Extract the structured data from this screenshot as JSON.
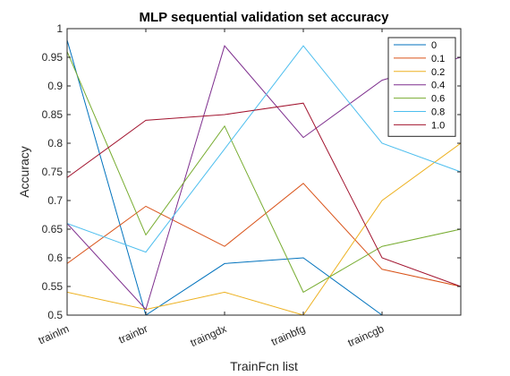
{
  "chart_data": {
    "type": "line",
    "title": "MLP sequential validation set accuracy",
    "xlabel": "TrainFcn list",
    "ylabel": "Accuracy",
    "categories": [
      "trainlm",
      "trainbr",
      "traingdx",
      "trainbfg",
      "traincgb",
      ""
    ],
    "ylim": [
      0.5,
      1
    ],
    "yticks": [
      "0.5",
      "0.55",
      "0.6",
      "0.65",
      "0.7",
      "0.75",
      "0.8",
      "0.85",
      "0.9",
      "0.95",
      "1"
    ],
    "grid": false,
    "legend_position": "top-right",
    "series": [
      {
        "name": "0",
        "color": "#0072bd",
        "values": [
          0.98,
          0.5,
          0.59,
          0.6,
          0.5,
          0.48
        ]
      },
      {
        "name": "0.1",
        "color": "#d95319",
        "values": [
          0.59,
          0.69,
          0.62,
          0.73,
          0.58,
          0.55
        ]
      },
      {
        "name": "0.2",
        "color": "#edb120",
        "values": [
          0.54,
          0.51,
          0.54,
          0.5,
          0.7,
          0.8
        ]
      },
      {
        "name": "0.4",
        "color": "#7e2f8e",
        "values": [
          0.66,
          0.51,
          0.97,
          0.81,
          0.91,
          0.95
        ]
      },
      {
        "name": "0.6",
        "color": "#77ac30",
        "values": [
          0.96,
          0.64,
          0.83,
          0.54,
          0.62,
          0.65
        ]
      },
      {
        "name": "0.8",
        "color": "#4dbeee",
        "values": [
          0.66,
          0.61,
          0.79,
          0.97,
          0.8,
          0.75
        ]
      },
      {
        "name": "1.0",
        "color": "#a2142f",
        "values": [
          0.74,
          0.84,
          0.85,
          0.87,
          0.6,
          0.55
        ]
      }
    ]
  }
}
